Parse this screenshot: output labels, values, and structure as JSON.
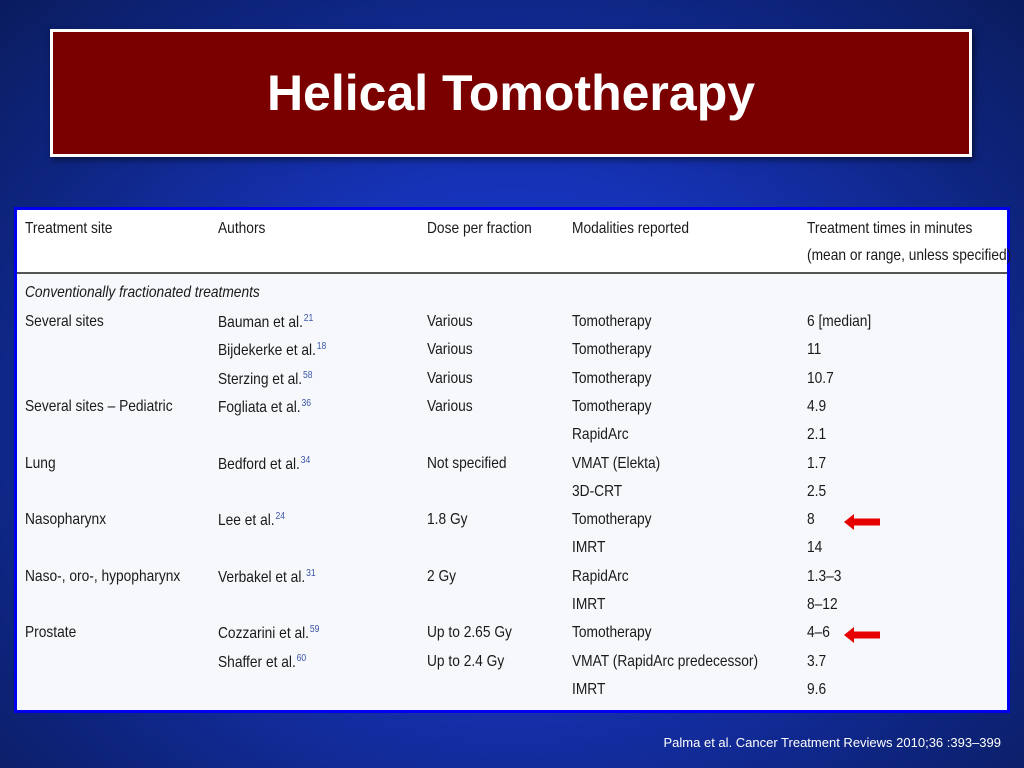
{
  "slide": {
    "title": "Helical Tomotherapy",
    "citation": "Palma et al. Cancer Treatment Reviews 2010;36 :393–399"
  },
  "table": {
    "headers": {
      "site": "Treatment site",
      "authors": "Authors",
      "dose": "Dose per fraction",
      "modalities": "Modalities reported",
      "times_line1": "Treatment times  in minutes",
      "times_line2": "(mean or range, unless specified)"
    },
    "section": "Conventionally fractionated treatments",
    "rows": [
      {
        "site": "Several sites",
        "author": "Bauman et al.",
        "ref": "21",
        "dose": "Various",
        "modality": "Tomotherapy",
        "time": "6 [median]"
      },
      {
        "site": "",
        "author": "Bijdekerke et al.",
        "ref": "18",
        "dose": "Various",
        "modality": "Tomotherapy",
        "time": "11"
      },
      {
        "site": "",
        "author": "Sterzing et al.",
        "ref": "58",
        "dose": "Various",
        "modality": "Tomotherapy",
        "time": "10.7"
      },
      {
        "site": "Several sites – Pediatric",
        "author": "Fogliata et al.",
        "ref": "36",
        "dose": "Various",
        "modality": "Tomotherapy",
        "time": "4.9"
      },
      {
        "site": "",
        "author": "",
        "ref": "",
        "dose": "",
        "modality": "RapidArc",
        "time": "2.1"
      },
      {
        "site": "Lung",
        "author": "Bedford et al.",
        "ref": "34",
        "dose": "Not specified",
        "modality": "VMAT (Elekta)",
        "time": "1.7"
      },
      {
        "site": "",
        "author": "",
        "ref": "",
        "dose": "",
        "modality": "3D-CRT",
        "time": "2.5"
      },
      {
        "site": "Nasopharynx",
        "author": "Lee et al.",
        "ref": "24",
        "dose": "1.8 Gy",
        "modality": "Tomotherapy",
        "time": "8",
        "highlight": true
      },
      {
        "site": "",
        "author": "",
        "ref": "",
        "dose": "",
        "modality": "IMRT",
        "time": "14"
      },
      {
        "site": "Naso-, oro-, hypopharynx",
        "author": "Verbakel et al.",
        "ref": "31",
        "dose": "2 Gy",
        "modality": "RapidArc",
        "time": "1.3–3"
      },
      {
        "site": "",
        "author": "",
        "ref": "",
        "dose": "",
        "modality": "IMRT",
        "time": "8–12"
      },
      {
        "site": "Prostate",
        "author": "Cozzarini et al.",
        "ref": "59",
        "dose": "Up to 2.65 Gy",
        "modality": "Tomotherapy",
        "time": "4–6",
        "highlight": true
      },
      {
        "site": "",
        "author": "Shaffer et al.",
        "ref": "60",
        "dose": "Up to 2.4 Gy",
        "modality": "VMAT (RapidArc predecessor)",
        "time": "3.7"
      },
      {
        "site": "",
        "author": "",
        "ref": "",
        "dose": "",
        "modality": "IMRT",
        "time": "9.6"
      }
    ]
  },
  "colors": {
    "title_bg": "#7a0000",
    "table_border": "#0000ee",
    "arrow": "#e60000",
    "ref_link": "#3b55a8"
  },
  "icons": {
    "highlight": "left-arrow-icon"
  }
}
